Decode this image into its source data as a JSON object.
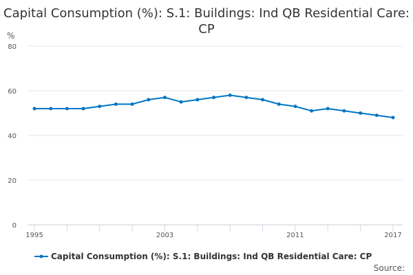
{
  "chart_data": {
    "type": "line",
    "title": "Capital Consumption (%): S.1: Buildings: Ind QB Residential Care: CP",
    "ylabel": "%",
    "xlabel": "",
    "ylim": [
      0,
      80
    ],
    "yticks": [
      0,
      20,
      40,
      60,
      80
    ],
    "xticks": [
      1995,
      2003,
      2011,
      2017
    ],
    "x": [
      1995,
      1996,
      1997,
      1998,
      1999,
      2000,
      2001,
      2002,
      2003,
      2004,
      2005,
      2006,
      2007,
      2008,
      2009,
      2010,
      2011,
      2012,
      2013,
      2014,
      2015,
      2016,
      2017
    ],
    "series": [
      {
        "name": "Capital Consumption (%): S.1: Buildings: Ind QB Residential Care: CP",
        "color": "#0075c4",
        "values": [
          52,
          52,
          52,
          52,
          53,
          54,
          54,
          56,
          57,
          55,
          56,
          57,
          58,
          57,
          56,
          54,
          53,
          51,
          52,
          51,
          50,
          49,
          48
        ]
      }
    ],
    "legend_position": "bottom",
    "grid": true
  },
  "source_label": "Source:"
}
